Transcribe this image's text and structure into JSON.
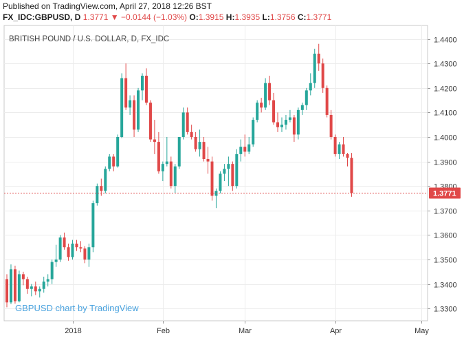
{
  "header": {
    "published": "Published on TradingView.com, April 27, 2018 12:26 BST",
    "symbol": "FX_IDC:GBPUSD, D",
    "last": "1.3771",
    "change_arrow": "▼",
    "change": "−0.0144 (−1.03%)",
    "o_label": "O:",
    "o": "1.3915",
    "h_label": "H:",
    "h": "1.3935",
    "l_label": "L:",
    "l": "1.3756",
    "c_label": "C:",
    "c": "1.3771"
  },
  "watermark": "GBPUSD chart by TradingView",
  "chart_data": {
    "type": "candlestick",
    "title": "BRITISH POUND / U.S. DOLLAR, D, FX_IDC",
    "ylim": [
      1.325,
      1.4455
    ],
    "y_ticks": [
      "1.4400",
      "1.4300",
      "1.4200",
      "1.4100",
      "1.4000",
      "1.3900",
      "1.3800",
      "1.3700",
      "1.3600",
      "1.3500",
      "1.3400",
      "1.3300"
    ],
    "x_ticks": [
      {
        "label": "2018",
        "index": 16
      },
      {
        "label": "Feb",
        "index": 38
      },
      {
        "label": "Mar",
        "index": 58
      },
      {
        "label": "Apr",
        "index": 80
      },
      {
        "label": "May",
        "index": 101
      }
    ],
    "last_price": 1.3771,
    "last_price_label": "1.3771",
    "colors": {
      "up": "#26a69a",
      "down": "#e04848"
    },
    "grid": true,
    "candles": [
      [
        1.342,
        1.344,
        1.3305,
        1.3325
      ],
      [
        1.3325,
        1.348,
        1.3318,
        1.346
      ],
      [
        1.346,
        1.3475,
        1.332,
        1.333
      ],
      [
        1.333,
        1.3455,
        1.3325,
        1.344
      ],
      [
        1.344,
        1.345,
        1.3395,
        1.342
      ],
      [
        1.342,
        1.343,
        1.336,
        1.338
      ],
      [
        1.338,
        1.34,
        1.335,
        1.339
      ],
      [
        1.339,
        1.341,
        1.3355,
        1.337
      ],
      [
        1.337,
        1.339,
        1.3345,
        1.338
      ],
      [
        1.338,
        1.343,
        1.3365,
        1.341
      ],
      [
        1.341,
        1.344,
        1.339,
        1.342
      ],
      [
        1.342,
        1.35,
        1.34,
        1.349
      ],
      [
        1.349,
        1.356,
        1.347,
        1.35
      ],
      [
        1.35,
        1.36,
        1.349,
        1.359
      ],
      [
        1.359,
        1.361,
        1.354,
        1.355
      ],
      [
        1.355,
        1.3565,
        1.3495,
        1.351
      ],
      [
        1.351,
        1.358,
        1.35,
        1.3565
      ],
      [
        1.3565,
        1.358,
        1.3535,
        1.355
      ],
      [
        1.355,
        1.3575,
        1.353,
        1.3545
      ],
      [
        1.3545,
        1.3555,
        1.3485,
        1.35
      ],
      [
        1.35,
        1.3565,
        1.347,
        1.355
      ],
      [
        1.355,
        1.374,
        1.353,
        1.373
      ],
      [
        1.373,
        1.381,
        1.372,
        1.38
      ],
      [
        1.38,
        1.383,
        1.376,
        1.378
      ],
      [
        1.378,
        1.388,
        1.377,
        1.387
      ],
      [
        1.387,
        1.393,
        1.386,
        1.392
      ],
      [
        1.392,
        1.393,
        1.386,
        1.388
      ],
      [
        1.388,
        1.401,
        1.3875,
        1.4
      ],
      [
        1.4,
        1.426,
        1.3995,
        1.424
      ],
      [
        1.424,
        1.43,
        1.411,
        1.412
      ],
      [
        1.412,
        1.417,
        1.409,
        1.415
      ],
      [
        1.415,
        1.417,
        1.4,
        1.403
      ],
      [
        1.403,
        1.42,
        1.402,
        1.419
      ],
      [
        1.419,
        1.426,
        1.415,
        1.425
      ],
      [
        1.425,
        1.428,
        1.413,
        1.414
      ],
      [
        1.414,
        1.415,
        1.398,
        1.399
      ],
      [
        1.399,
        1.407,
        1.393,
        1.398
      ],
      [
        1.398,
        1.402,
        1.385,
        1.386
      ],
      [
        1.386,
        1.39,
        1.382,
        1.389
      ],
      [
        1.389,
        1.4,
        1.388,
        1.39
      ],
      [
        1.39,
        1.392,
        1.379,
        1.38
      ],
      [
        1.38,
        1.389,
        1.377,
        1.388
      ],
      [
        1.388,
        1.4,
        1.387,
        1.4
      ],
      [
        1.4,
        1.412,
        1.399,
        1.41
      ],
      [
        1.41,
        1.412,
        1.401,
        1.402
      ],
      [
        1.402,
        1.405,
        1.399,
        1.4
      ],
      [
        1.4,
        1.402,
        1.394,
        1.395
      ],
      [
        1.395,
        1.403,
        1.392,
        1.398
      ],
      [
        1.398,
        1.4,
        1.39,
        1.391
      ],
      [
        1.391,
        1.396,
        1.385,
        1.39
      ],
      [
        1.39,
        1.392,
        1.374,
        1.376
      ],
      [
        1.376,
        1.379,
        1.371,
        1.378
      ],
      [
        1.378,
        1.386,
        1.377,
        1.385
      ],
      [
        1.385,
        1.389,
        1.382,
        1.387
      ],
      [
        1.387,
        1.392,
        1.38,
        1.389
      ],
      [
        1.389,
        1.39,
        1.378,
        1.38
      ],
      [
        1.38,
        1.395,
        1.379,
        1.393
      ],
      [
        1.393,
        1.399,
        1.39,
        1.396
      ],
      [
        1.396,
        1.401,
        1.392,
        1.394
      ],
      [
        1.394,
        1.4,
        1.393,
        1.397
      ],
      [
        1.397,
        1.408,
        1.396,
        1.407
      ],
      [
        1.407,
        1.415,
        1.406,
        1.414
      ],
      [
        1.414,
        1.416,
        1.41,
        1.412
      ],
      [
        1.412,
        1.424,
        1.411,
        1.422
      ],
      [
        1.422,
        1.425,
        1.413,
        1.415
      ],
      [
        1.415,
        1.418,
        1.405,
        1.406
      ],
      [
        1.406,
        1.41,
        1.402,
        1.404
      ],
      [
        1.404,
        1.408,
        1.402,
        1.405
      ],
      [
        1.405,
        1.409,
        1.403,
        1.407
      ],
      [
        1.407,
        1.411,
        1.406,
        1.408
      ],
      [
        1.408,
        1.409,
        1.398,
        1.401
      ],
      [
        1.401,
        1.412,
        1.399,
        1.411
      ],
      [
        1.411,
        1.414,
        1.409,
        1.413
      ],
      [
        1.413,
        1.42,
        1.411,
        1.419
      ],
      [
        1.419,
        1.426,
        1.417,
        1.422
      ],
      [
        1.422,
        1.436,
        1.42,
        1.434
      ],
      [
        1.434,
        1.438,
        1.427,
        1.43
      ],
      [
        1.43,
        1.432,
        1.418,
        1.42
      ],
      [
        1.42,
        1.421,
        1.408,
        1.409
      ],
      [
        1.409,
        1.411,
        1.399,
        1.4
      ],
      [
        1.4,
        1.401,
        1.392,
        1.393
      ],
      [
        1.393,
        1.398,
        1.391,
        1.397
      ],
      [
        1.397,
        1.4,
        1.392,
        1.393
      ],
      [
        1.393,
        1.3935,
        1.388,
        1.3915
      ],
      [
        1.3915,
        1.3935,
        1.3756,
        1.3771
      ]
    ]
  }
}
